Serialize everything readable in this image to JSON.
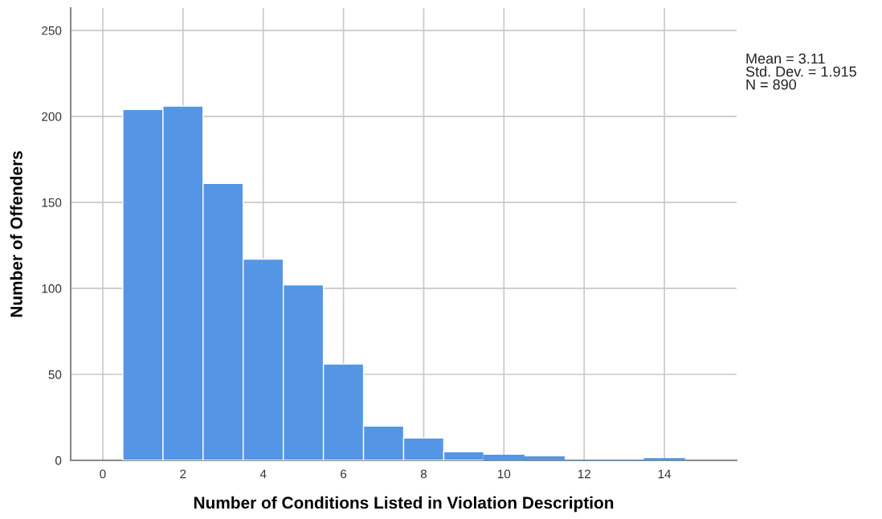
{
  "chart_data": {
    "type": "histogram",
    "xlabel": "Number of Conditions Listed in Violation Description",
    "ylabel": "Number of Offenders",
    "bins": [
      0.5,
      1.5,
      2.5,
      3.5,
      4.5,
      5.5,
      6.5,
      7.5,
      8.5,
      9.5,
      10.5,
      11.5,
      12.5,
      13.5,
      14.5
    ],
    "values": [
      204,
      206,
      161,
      117,
      102,
      56,
      20,
      13,
      5,
      3,
      2,
      0,
      0,
      1
    ],
    "color": "#5595e5",
    "xlim": [
      -0.8,
      15.8
    ],
    "xticks": [
      0,
      2,
      4,
      6,
      8,
      10,
      12,
      14
    ],
    "ylim": [
      0,
      263
    ],
    "yticks": [
      0,
      50,
      100,
      150,
      200,
      250
    ],
    "grid": true,
    "annotations": [
      "Mean = 3.11\nStd. Dev. = 1.915\nN = 890"
    ]
  }
}
